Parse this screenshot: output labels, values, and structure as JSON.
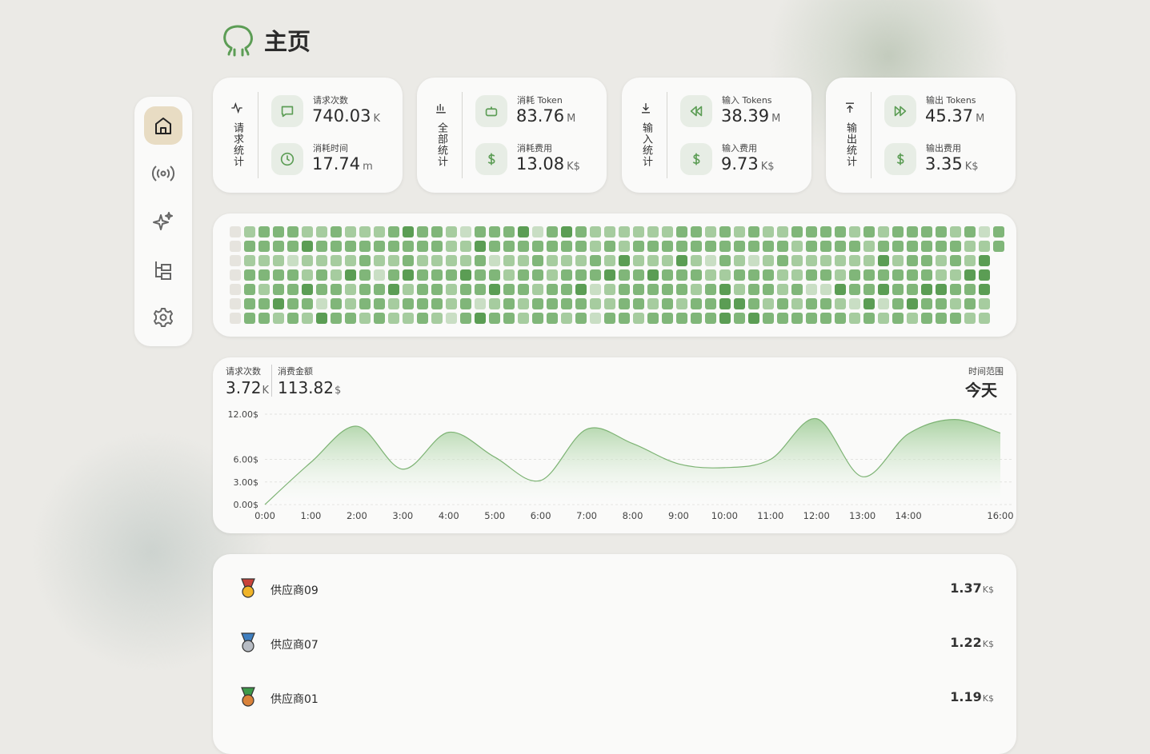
{
  "header": {
    "title": "主页"
  },
  "cards": [
    {
      "title": "请求统计",
      "items": [
        {
          "label": "请求次数",
          "value": 740.03,
          "unit": "K"
        },
        {
          "label": "消耗时间",
          "value": 17.74,
          "unit": "m"
        }
      ]
    },
    {
      "title": "全部统计",
      "items": [
        {
          "label": "消耗 Token",
          "value": 83.76,
          "unit": "M"
        },
        {
          "label": "消耗费用",
          "value": 13.08,
          "unit": "K$"
        }
      ]
    },
    {
      "title": "输入统计",
      "items": [
        {
          "label": "输入 Tokens",
          "value": 38.39,
          "unit": "M"
        },
        {
          "label": "输入费用",
          "value": 9.73,
          "unit": "K$"
        }
      ]
    },
    {
      "title": "输出统计",
      "items": [
        {
          "label": "输出 Tokens",
          "value": 45.37,
          "unit": "M"
        },
        {
          "label": "输出费用",
          "value": 3.35,
          "unit": "K$"
        }
      ]
    }
  ],
  "heatmap": {
    "colors": [
      "#e6e4de",
      "#c9dec4",
      "#a6cc9f",
      "#80b679",
      "#5b9d54"
    ],
    "levels": [
      [
        0,
        2,
        3,
        3,
        3,
        2,
        2,
        3,
        2,
        2,
        2,
        3,
        4,
        3,
        3,
        2,
        1,
        3,
        3,
        3,
        4,
        1,
        3,
        4,
        3,
        2,
        2,
        2,
        2,
        2,
        2,
        3,
        3,
        2,
        3,
        2,
        3,
        2,
        2,
        3,
        3,
        3,
        3,
        2,
        3,
        2,
        3,
        3,
        3,
        3,
        2,
        3,
        1,
        3
      ],
      [
        0,
        3,
        3,
        3,
        3,
        4,
        3,
        3,
        3,
        3,
        3,
        3,
        3,
        3,
        3,
        2,
        2,
        4,
        3,
        3,
        3,
        3,
        3,
        3,
        3,
        2,
        3,
        2,
        3,
        3,
        3,
        3,
        3,
        3,
        3,
        3,
        3,
        3,
        3,
        2,
        3,
        3,
        3,
        3,
        2,
        3,
        3,
        3,
        3,
        3,
        3,
        2,
        2,
        3
      ],
      [
        0,
        2,
        2,
        2,
        1,
        2,
        2,
        2,
        2,
        3,
        2,
        2,
        3,
        2,
        2,
        2,
        2,
        3,
        1,
        2,
        2,
        3,
        2,
        2,
        2,
        3,
        2,
        4,
        2,
        2,
        2,
        4,
        2,
        1,
        3,
        2,
        1,
        2,
        3,
        2,
        2,
        2,
        2,
        2,
        2,
        4,
        2,
        3,
        3,
        2,
        3,
        2,
        4,
        null
      ],
      [
        0,
        3,
        3,
        3,
        3,
        2,
        3,
        2,
        4,
        3,
        1,
        3,
        4,
        3,
        3,
        3,
        4,
        3,
        3,
        2,
        3,
        3,
        2,
        3,
        3,
        3,
        4,
        3,
        3,
        4,
        3,
        3,
        3,
        2,
        2,
        3,
        3,
        3,
        2,
        2,
        3,
        3,
        2,
        3,
        3,
        3,
        3,
        3,
        3,
        2,
        2,
        4,
        4,
        null
      ],
      [
        0,
        3,
        2,
        3,
        3,
        4,
        3,
        3,
        2,
        3,
        3,
        4,
        2,
        3,
        3,
        2,
        3,
        3,
        4,
        3,
        3,
        2,
        3,
        3,
        4,
        1,
        2,
        3,
        3,
        3,
        3,
        3,
        2,
        3,
        4,
        2,
        3,
        3,
        2,
        3,
        1,
        1,
        4,
        3,
        3,
        4,
        3,
        3,
        4,
        4,
        3,
        3,
        4,
        null
      ],
      [
        0,
        3,
        3,
        4,
        3,
        3,
        1,
        3,
        2,
        3,
        3,
        2,
        3,
        3,
        3,
        2,
        3,
        1,
        2,
        3,
        2,
        3,
        3,
        3,
        3,
        2,
        2,
        3,
        3,
        2,
        3,
        2,
        3,
        3,
        4,
        4,
        3,
        2,
        3,
        2,
        3,
        3,
        2,
        1,
        4,
        1,
        3,
        4,
        3,
        3,
        2,
        3,
        2,
        null
      ],
      [
        0,
        3,
        3,
        2,
        3,
        2,
        4,
        3,
        3,
        2,
        3,
        2,
        2,
        3,
        2,
        1,
        3,
        4,
        3,
        3,
        2,
        3,
        3,
        2,
        3,
        1,
        3,
        3,
        2,
        3,
        3,
        3,
        3,
        3,
        4,
        3,
        4,
        3,
        3,
        3,
        3,
        3,
        3,
        2,
        3,
        2,
        3,
        2,
        3,
        3,
        3,
        2,
        2,
        null
      ]
    ]
  },
  "summary": {
    "requests_label": "请求次数",
    "requests": 3.72,
    "requests_unit": "K",
    "cost_label": "消费金额",
    "cost": 113.82,
    "cost_unit": "$",
    "range_label": "时间范围",
    "range": "今天"
  },
  "chart_data": {
    "type": "area",
    "color": "#7db374",
    "categories": [
      "0:00",
      "1:00",
      "2:00",
      "3:00",
      "4:00",
      "5:00",
      "6:00",
      "7:00",
      "8:00",
      "9:00",
      "10:00",
      "11:00",
      "12:00",
      "13:00",
      "14:00",
      null,
      "16:00"
    ],
    "values": [
      0,
      5.6,
      10.4,
      4.7,
      9.6,
      6.3,
      3.2,
      10,
      8.1,
      5.4,
      4.9,
      6,
      11.4,
      3.7,
      9.4,
      11.3,
      9.5
    ],
    "ylim": [
      0,
      12
    ],
    "yticks": [
      {
        "value": 0,
        "label": "0.00$"
      },
      {
        "value": 3,
        "label": "3.00$"
      },
      {
        "value": 6,
        "label": "6.00$"
      },
      {
        "value": 12,
        "label": "12.00$"
      }
    ],
    "grid": true
  },
  "ranking": [
    {
      "name": "供应商09",
      "value": 1.37,
      "unit": "K$"
    },
    {
      "name": "供应商07",
      "value": 1.22,
      "unit": "K$"
    },
    {
      "name": "供应商01",
      "value": 1.19,
      "unit": "K$"
    }
  ]
}
